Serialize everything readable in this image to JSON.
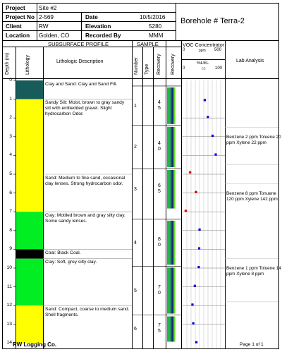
{
  "header": {
    "project_label": "Project",
    "project_value": "Site #2",
    "project_no_label": "Project No",
    "project_no_value": "2-569",
    "date_label": "Date",
    "date_value": "10/5/2016",
    "client_label": "Client",
    "client_value": "RW",
    "elevation_label": "Elevation",
    "elevation_value": "5280",
    "location_label": "Location",
    "location_value": "Golden, CO",
    "recorded_by_label": "Recorded By",
    "recorded_by_value": "MMM",
    "borehole_title": "Borehole # Terra-2"
  },
  "columns": {
    "subsurface_profile": "SUBSURFACE PROFILE",
    "sample": "SAMPLE",
    "depth": "Depth (m)",
    "lithology": "Lithology",
    "lithologic_description": "Lithologic Description",
    "number": "Number",
    "type": "Type",
    "recovery": "Recovery",
    "recovery2": "Recovery",
    "voc_title": "VOC Concentrator",
    "voc_min": "0",
    "voc_unit": "ppm",
    "voc_max": "500",
    "lel_title": "%LEL",
    "lel_min": "0",
    "lel_mid": "50",
    "lel_max": "100",
    "lab_analysis": "Lab Analysis"
  },
  "depth_ticks": [
    "0",
    "1",
    "2",
    "3",
    "4",
    "5",
    "6",
    "7",
    "8",
    "9",
    "10",
    "11",
    "12",
    "13",
    "14"
  ],
  "lithology_layers": [
    {
      "top": 0,
      "bottom": 1,
      "color": "#175c5a"
    },
    {
      "top": 1,
      "bottom": 7,
      "color": "#ffff00"
    },
    {
      "top": 7,
      "bottom": 9,
      "color": "#00ee22"
    },
    {
      "top": 9,
      "bottom": 9.5,
      "color": "#000000"
    },
    {
      "top": 9.5,
      "bottom": 12,
      "color": "#00ee22"
    },
    {
      "top": 12,
      "bottom": 14,
      "color": "#ffff00"
    }
  ],
  "descriptions": [
    {
      "depth": 0,
      "text": "Clay and Sand: Clay and Sand Fill."
    },
    {
      "depth": 1,
      "text": "Sandy Silt: Moist, brown to gray sandy silt with embedded gravel. Slight hydrocarbon Odor."
    },
    {
      "depth": 5,
      "text": "Sand: Medium to fine sand, occasional clay lenses. Strong hydrocarbon odor."
    },
    {
      "depth": 7,
      "text": "Clay: Mottled brown and gray silty clay. Some sandy lenses."
    },
    {
      "depth": 9,
      "text": "Coal: Black Coal."
    },
    {
      "depth": 9.5,
      "text": "Clay: Soft, grey silty clay."
    },
    {
      "depth": 12,
      "text": "Sand: Compact, coarse to medium sand. Shell fragments."
    }
  ],
  "samples": [
    {
      "number": "1",
      "top": 0.3,
      "bottom": 2.4,
      "recovery": "45"
    },
    {
      "number": "2",
      "top": 2.4,
      "bottom": 4.7,
      "recovery": "40"
    },
    {
      "number": "3",
      "top": 4.7,
      "bottom": 6.9,
      "recovery": "65"
    },
    {
      "number": "4",
      "top": 7.4,
      "bottom": 9.9,
      "recovery": "80"
    },
    {
      "number": "5",
      "top": 9.9,
      "bottom": 12.5,
      "recovery": "70"
    },
    {
      "number": "6",
      "top": 12.5,
      "bottom": 14,
      "recovery": "75"
    }
  ],
  "voc_points": [
    {
      "depth": 1.05,
      "ppm": 280,
      "color": "#0000dd"
    },
    {
      "depth": 1.95,
      "ppm": 320,
      "color": "#0000dd"
    },
    {
      "depth": 2.95,
      "ppm": 380,
      "color": "#0000dd"
    },
    {
      "depth": 3.95,
      "ppm": 420,
      "color": "#0000dd"
    },
    {
      "depth": 4.9,
      "ppm": 95,
      "color": "#dd0000"
    },
    {
      "depth": 5.95,
      "ppm": 170,
      "color": "#dd0000"
    },
    {
      "depth": 6.95,
      "ppm": 40,
      "color": "#dd0000"
    },
    {
      "depth": 7.95,
      "ppm": 215,
      "color": "#0000dd"
    },
    {
      "depth": 8.95,
      "ppm": 210,
      "color": "#0000dd"
    },
    {
      "depth": 9.95,
      "ppm": 205,
      "color": "#0000dd"
    },
    {
      "depth": 10.95,
      "ppm": 155,
      "color": "#0000dd"
    },
    {
      "depth": 11.95,
      "ppm": 125,
      "color": "#0000dd"
    },
    {
      "depth": 12.95,
      "ppm": 135,
      "color": "#0000dd"
    },
    {
      "depth": 13.95,
      "ppm": 175,
      "color": "#0000dd"
    }
  ],
  "lab_results": [
    {
      "depth": 3,
      "text": "Benzene 2 ppm Toluene 20 ppm Xylene 22 ppm"
    },
    {
      "depth": 6,
      "text": "Benzene 8 ppm Tonuene 120 ppm Xylene 142 ppm"
    },
    {
      "depth": 10,
      "text": "Benzene 1 ppm Toluene 14 ppm Xylene 8 ppm"
    }
  ],
  "footer": {
    "company": "RW Logging Co.",
    "page": "Page 1 of 1"
  }
}
